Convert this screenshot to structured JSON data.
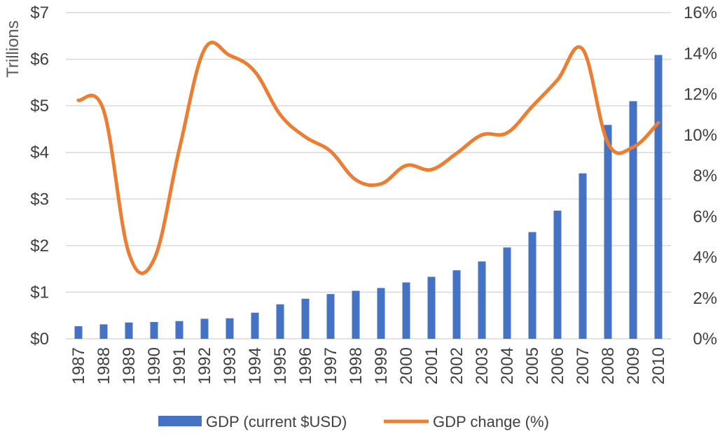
{
  "chart_data": {
    "type": "bar",
    "categories": [
      "1987",
      "1988",
      "1989",
      "1990",
      "1991",
      "1992",
      "1993",
      "1994",
      "1995",
      "1996",
      "1997",
      "1998",
      "1999",
      "2000",
      "2001",
      "2002",
      "2003",
      "2004",
      "2005",
      "2006",
      "2007",
      "2008",
      "2009",
      "2010"
    ],
    "series": [
      {
        "name": "GDP (current $USD)",
        "type": "bar",
        "axis": "left",
        "color": "#4472C4",
        "values": [
          0.27,
          0.31,
          0.35,
          0.36,
          0.38,
          0.43,
          0.44,
          0.56,
          0.74,
          0.86,
          0.96,
          1.03,
          1.09,
          1.21,
          1.33,
          1.47,
          1.66,
          1.96,
          2.29,
          2.75,
          3.55,
          4.59,
          5.1,
          6.09
        ]
      },
      {
        "name": "GDP change (%)",
        "type": "line",
        "axis": "right",
        "color": "#ED7D31",
        "values": [
          11.7,
          11.2,
          4.2,
          3.9,
          9.3,
          14.2,
          13.9,
          13.1,
          11.0,
          9.9,
          9.2,
          7.8,
          7.6,
          8.5,
          8.3,
          9.1,
          10.0,
          10.1,
          11.4,
          12.7,
          14.2,
          9.6,
          9.4,
          10.6
        ]
      }
    ],
    "ylabel": "Trillions",
    "ylim": [
      0,
      7
    ],
    "y_ticks": [
      "$0",
      "$1",
      "$2",
      "$3",
      "$4",
      "$5",
      "$6",
      "$7"
    ],
    "y2lim": [
      0,
      16
    ],
    "y2_ticks": [
      "0%",
      "2%",
      "4%",
      "6%",
      "8%",
      "10%",
      "12%",
      "14%",
      "16%"
    ],
    "grid": true,
    "legend_position": "bottom"
  }
}
